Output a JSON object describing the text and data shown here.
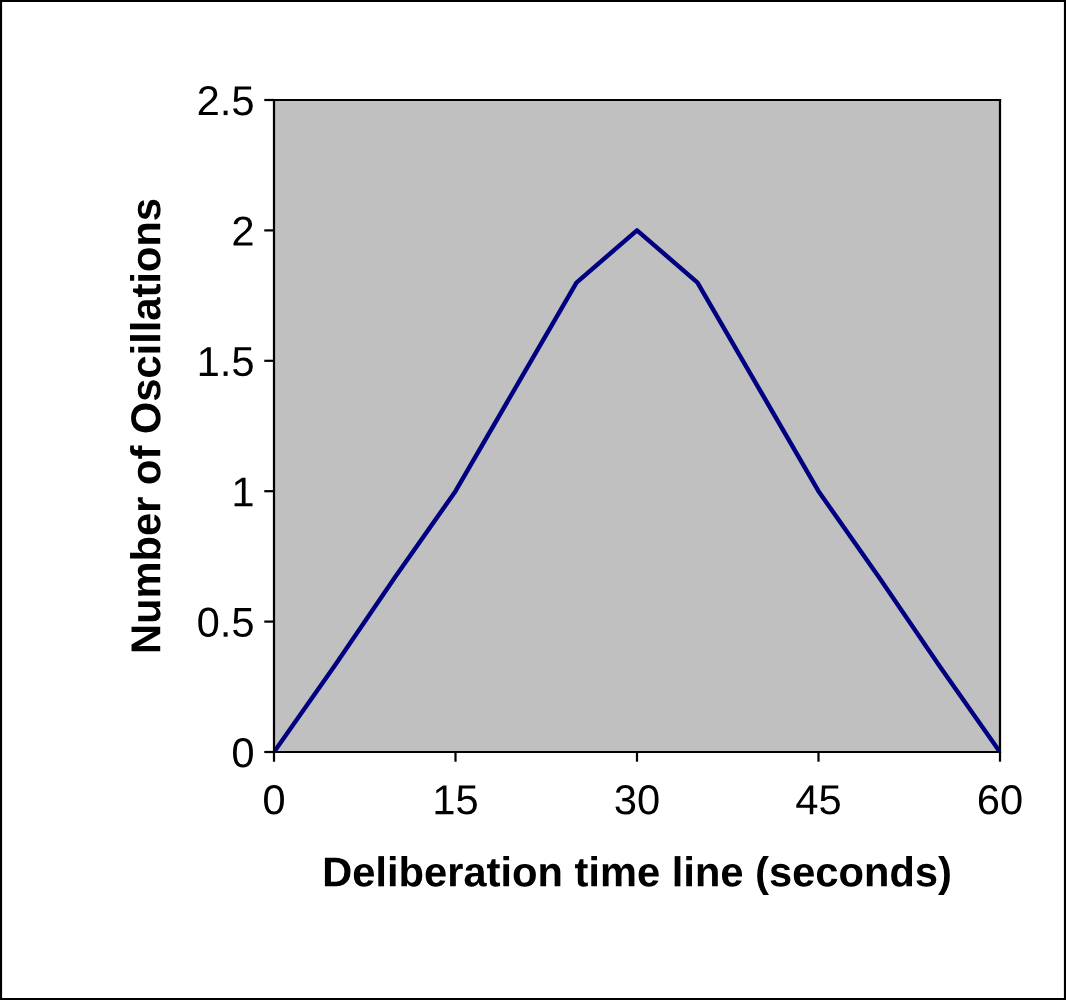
{
  "chart_data": {
    "type": "line",
    "xlabel": "Deliberation time line (seconds)",
    "ylabel": "Number of Oscillations",
    "x": [
      0,
      5,
      10,
      15,
      20,
      25,
      30,
      35,
      40,
      45,
      50,
      55,
      60
    ],
    "series": [
      {
        "color": "#000080",
        "values": [
          0,
          0.33,
          0.67,
          1.0,
          1.4,
          1.8,
          2.0,
          1.8,
          1.4,
          1.0,
          0.67,
          0.33,
          0
        ]
      }
    ],
    "xlim": [
      0,
      60
    ],
    "xticks": [
      0,
      15,
      30,
      45,
      60
    ],
    "ylim": [
      0,
      2.5
    ],
    "yticks": [
      0,
      0.5,
      1,
      1.5,
      2,
      2.5
    ],
    "grid": false
  }
}
